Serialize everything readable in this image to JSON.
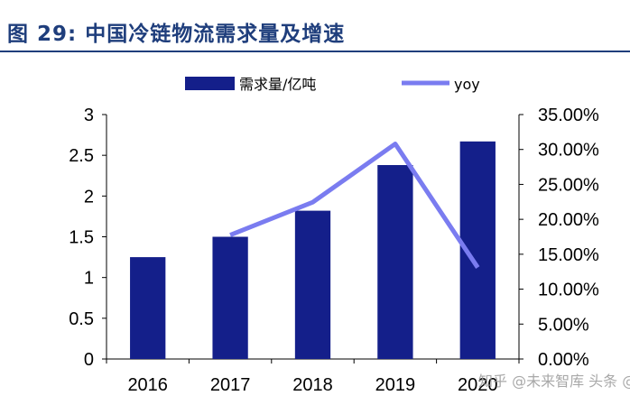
{
  "header": {
    "title": "图 29:  中国冷链物流需求量及增速"
  },
  "watermark": {
    "text": "知乎 @未来智库 头条 @财经"
  },
  "chart_data": {
    "type": "bar",
    "title": "中国冷链物流需求量及增速",
    "categories": [
      "2016",
      "2017",
      "2018",
      "2019",
      "2020"
    ],
    "series": [
      {
        "name": "需求量/亿吨",
        "type": "bar",
        "axis": "left",
        "color": "#141f8a",
        "values": [
          1.25,
          1.5,
          1.82,
          2.38,
          2.67
        ]
      },
      {
        "name": "yoy",
        "type": "line",
        "axis": "right",
        "color": "#7a7cf0",
        "values": [
          null,
          0.1775,
          0.2245,
          0.308,
          0.131
        ]
      }
    ],
    "y_left": {
      "min": 0,
      "max": 3,
      "ticks": [
        0,
        0.5,
        1,
        1.5,
        2,
        2.5,
        3
      ],
      "tick_labels": [
        "0",
        "0.5",
        "1",
        "1.5",
        "2",
        "2.5",
        "3"
      ]
    },
    "y_right": {
      "min": 0,
      "max": 0.35,
      "ticks": [
        0,
        0.05,
        0.1,
        0.15,
        0.2,
        0.25,
        0.3,
        0.35
      ],
      "tick_labels": [
        "0.00%",
        "5.00%",
        "10.00%",
        "15.00%",
        "20.00%",
        "25.00%",
        "30.00%",
        "35.00%"
      ]
    },
    "legend": {
      "position": "top",
      "bar_label": "需求量/亿吨",
      "line_label": "yoy"
    },
    "grid": false
  }
}
